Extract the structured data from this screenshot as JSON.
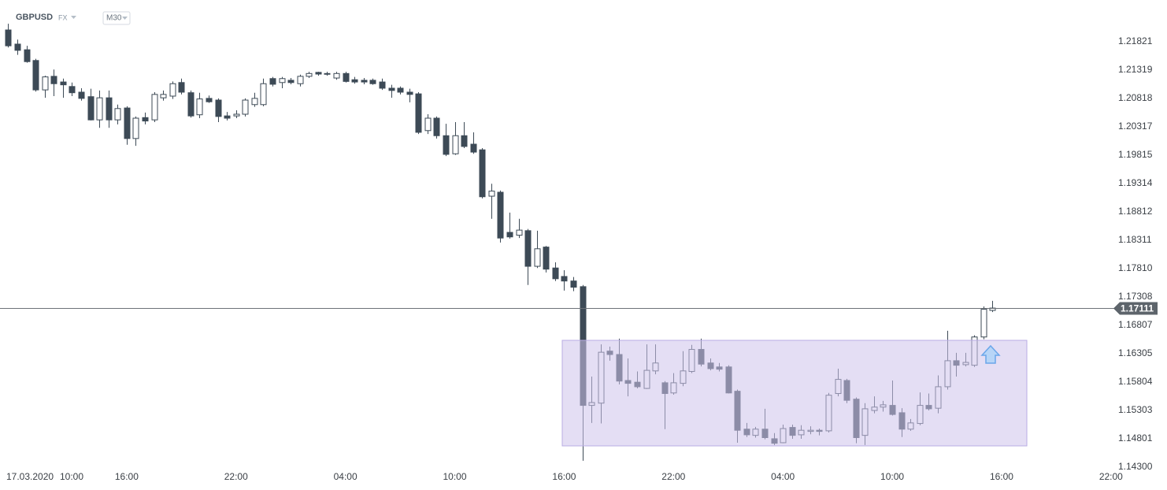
{
  "chart_data": {
    "type": "candlestick",
    "title": "GBPUSD",
    "market": "FX",
    "timeframe": "M30",
    "date": "17.03.2020",
    "color": "#3d4a56",
    "x": [
      9.5,
      10,
      10.5,
      11,
      11.5,
      12,
      12.5,
      13,
      13.5,
      14,
      14.5,
      15,
      15.5,
      16,
      16.5,
      17,
      17.5,
      18,
      18.5,
      19,
      19.5,
      20,
      20.5,
      21,
      21.5,
      22,
      22.5,
      23,
      23.5,
      24,
      24.5,
      25,
      25.5,
      26,
      26.5,
      27,
      27.5,
      28,
      28.5,
      29,
      29.5,
      30,
      30.5,
      31,
      31.5,
      32,
      32.5,
      33,
      33.5,
      34,
      34.5,
      35,
      35.5,
      36,
      36.5,
      37,
      37.5,
      38,
      38.5,
      39,
      39.5,
      40,
      40.5,
      41,
      41.5,
      42,
      42.5,
      43,
      43.5,
      44,
      44.5,
      45,
      45.5,
      46,
      46.5,
      47,
      47.5,
      48,
      48.5,
      49,
      49.5,
      50,
      50.5,
      51,
      51.5,
      52,
      52.5,
      53,
      53.5,
      54,
      54.5,
      55,
      55.5,
      56,
      56.5,
      57,
      57.5,
      58,
      58.5,
      59,
      59.5,
      60,
      60.5,
      61,
      61.5,
      62,
      62.5,
      63,
      63.5
    ],
    "open": [
      1.2203,
      1.2178,
      1.2168,
      1.2149,
      1.2097,
      1.2121,
      1.2111,
      1.2103,
      1.2093,
      1.2085,
      1.2044,
      1.2083,
      1.2044,
      1.2065,
      1.2011,
      1.2048,
      1.2044,
      1.2083,
      1.2086,
      1.211,
      1.2092,
      1.2053,
      1.2082,
      1.2079,
      1.2051,
      1.2051,
      1.2054,
      1.2071,
      1.2071,
      1.2117,
      1.211,
      1.2114,
      1.2108,
      1.2121,
      1.2128,
      1.2125,
      1.2118,
      1.2126,
      1.2115,
      1.2114,
      1.2114,
      1.2111,
      1.21,
      1.21,
      1.2093,
      1.209,
      1.2025,
      1.2047,
      1.2016,
      1.1984,
      1.2016,
      1.2001,
      1.1991,
      1.1909,
      1.1916,
      1.1845,
      1.184,
      1.1848,
      1.1785,
      1.1819,
      1.1782,
      1.1767,
      1.1759,
      1.1749,
      1.1539,
      1.1543,
      1.1635,
      1.1629,
      1.1583,
      1.158,
      1.1569,
      1.16,
      1.1579,
      1.1561,
      1.1578,
      1.1599,
      1.1638,
      1.1614,
      1.1607,
      1.1607,
      1.1564,
      1.1497,
      1.1486,
      1.1497,
      1.148,
      1.1473,
      1.15,
      1.1487,
      1.1493,
      1.1495,
      1.1494,
      1.156,
      1.1583,
      1.155,
      1.1486,
      1.153,
      1.1536,
      1.1539,
      1.1526,
      1.1497,
      1.1507,
      1.1539,
      1.1534,
      1.1572,
      1.1618,
      1.1611,
      1.161,
      1.166,
      1.1707
    ],
    "high": [
      1.2214,
      1.2186,
      1.2175,
      1.2152,
      1.2122,
      1.2133,
      1.2117,
      1.211,
      1.21,
      1.2099,
      1.2096,
      1.2096,
      1.2071,
      1.2068,
      1.205,
      1.2057,
      1.2093,
      1.2096,
      1.2112,
      1.2117,
      1.2096,
      1.2092,
      1.2087,
      1.2082,
      1.2058,
      1.2061,
      1.2082,
      1.2092,
      1.2117,
      1.212,
      1.212,
      1.2118,
      1.2124,
      1.2129,
      1.2129,
      1.2129,
      1.2129,
      1.2129,
      1.212,
      1.2118,
      1.2117,
      1.2117,
      1.2106,
      1.2103,
      1.2099,
      1.2093,
      1.2054,
      1.205,
      1.2037,
      1.204,
      1.204,
      1.2022,
      1.1994,
      1.1931,
      1.1919,
      1.188,
      1.1869,
      1.1851,
      1.1848,
      1.1821,
      1.1792,
      1.1778,
      1.1766,
      1.1752,
      1.159,
      1.1647,
      1.1643,
      1.1657,
      1.1622,
      1.1599,
      1.1647,
      1.1647,
      1.1582,
      1.1596,
      1.1635,
      1.1646,
      1.1657,
      1.1622,
      1.1614,
      1.161,
      1.1567,
      1.1508,
      1.1501,
      1.1533,
      1.149,
      1.1505,
      1.1505,
      1.1504,
      1.1502,
      1.1498,
      1.1561,
      1.1604,
      1.1586,
      1.1553,
      1.1543,
      1.1555,
      1.1547,
      1.1583,
      1.1534,
      1.1515,
      1.1562,
      1.156,
      1.1592,
      1.1671,
      1.1632,
      1.1632,
      1.1663,
      1.1714,
      1.1724
    ],
    "low": [
      1.2172,
      1.2159,
      1.2145,
      1.2094,
      1.2083,
      1.2086,
      1.2083,
      1.2086,
      1.2078,
      1.2043,
      1.203,
      1.203,
      1.2036,
      1.2,
      1.1998,
      1.2036,
      1.204,
      1.2078,
      1.2081,
      1.2089,
      1.2048,
      1.2047,
      1.2074,
      1.204,
      1.2043,
      1.2047,
      1.205,
      1.2067,
      1.2068,
      1.2103,
      1.21,
      1.2107,
      1.2103,
      1.2118,
      1.2122,
      1.2122,
      1.2115,
      1.211,
      1.2108,
      1.2107,
      1.2106,
      1.2097,
      1.2083,
      1.2089,
      1.2075,
      1.2019,
      1.2019,
      1.2011,
      1.198,
      1.1982,
      1.1994,
      1.1984,
      1.1905,
      1.1869,
      1.1827,
      1.1834,
      1.1835,
      1.1752,
      1.1782,
      1.1774,
      1.1759,
      1.1742,
      1.1741,
      1.1441,
      1.1508,
      1.1507,
      1.1618,
      1.1576,
      1.1555,
      1.1569,
      1.1568,
      1.1594,
      1.1497,
      1.1558,
      1.1573,
      1.1596,
      1.1608,
      1.1601,
      1.1599,
      1.156,
      1.1473,
      1.1483,
      1.1482,
      1.1479,
      1.1469,
      1.1472,
      1.148,
      1.148,
      1.1488,
      1.1486,
      1.1491,
      1.1555,
      1.1543,
      1.1472,
      1.1469,
      1.1525,
      1.1528,
      1.1521,
      1.1483,
      1.1494,
      1.1504,
      1.153,
      1.1525,
      1.1567,
      1.159,
      1.1608,
      1.1607,
      1.1656,
      1.1704
    ],
    "close": [
      1.2175,
      1.2167,
      1.2147,
      1.2097,
      1.212,
      1.2108,
      1.2106,
      1.2092,
      1.2082,
      1.2044,
      1.2083,
      1.2044,
      1.2064,
      1.2011,
      1.2047,
      1.2042,
      1.2089,
      1.2089,
      1.2108,
      1.2093,
      1.2051,
      1.2081,
      1.2076,
      1.205,
      1.2047,
      1.2054,
      1.2079,
      1.2082,
      1.2108,
      1.2107,
      1.2117,
      1.211,
      1.2121,
      1.2126,
      1.2125,
      1.2126,
      1.2126,
      1.2112,
      1.2111,
      1.2111,
      1.2108,
      1.21,
      1.2096,
      1.2093,
      1.2089,
      1.2022,
      1.2047,
      1.2016,
      1.1983,
      1.2016,
      1.1997,
      1.1987,
      1.1908,
      1.1918,
      1.1835,
      1.1837,
      1.1849,
      1.1785,
      1.1816,
      1.178,
      1.1763,
      1.1759,
      1.1748,
      1.1539,
      1.1544,
      1.1633,
      1.1629,
      1.1582,
      1.1578,
      1.1572,
      1.1601,
      1.1614,
      1.156,
      1.1579,
      1.16,
      1.1638,
      1.1612,
      1.1604,
      1.1603,
      1.1561,
      1.1495,
      1.1487,
      1.1497,
      1.1482,
      1.1472,
      1.1498,
      1.1486,
      1.1495,
      1.1495,
      1.1493,
      1.1557,
      1.1585,
      1.1548,
      1.1482,
      1.1533,
      1.1536,
      1.154,
      1.1523,
      1.1497,
      1.1508,
      1.1539,
      1.1533,
      1.1572,
      1.1618,
      1.161,
      1.1615,
      1.166,
      1.1709,
      1.17111
    ],
    "xlim": [
      9.05,
      70.05
    ],
    "xticks": [
      {
        "value": 10,
        "label": "10:00"
      },
      {
        "value": 16,
        "label": "16:00"
      },
      {
        "value": 22,
        "label": "22:00"
      },
      {
        "value": 28,
        "label": "04:00"
      },
      {
        "value": 34,
        "label": "10:00"
      },
      {
        "value": 40,
        "label": "16:00"
      },
      {
        "value": 46,
        "label": "22:00"
      },
      {
        "value": 52,
        "label": "04:00"
      },
      {
        "value": 58,
        "label": "10:00"
      },
      {
        "value": 64,
        "label": "16:00"
      },
      {
        "value": 70,
        "label": "22:00"
      }
    ],
    "ylim": [
      1.142,
      1.2256
    ],
    "yticks": [
      1.21821,
      1.21319,
      1.20818,
      1.20317,
      1.19815,
      1.19314,
      1.18812,
      1.18311,
      {
        "value": 1.1781,
        "label": "1.17810"
      },
      1.17308,
      1.16807,
      1.16305,
      1.15804,
      1.15303,
      1.14801,
      {
        "value": 1.143,
        "label": "1.14300"
      }
    ]
  }
}
